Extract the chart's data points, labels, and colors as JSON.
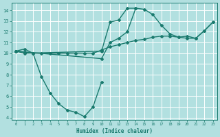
{
  "background_color": "#b2e0e0",
  "grid_color": "#d0eeee",
  "grid_color2": "#ffffff",
  "line_color": "#1a7a6e",
  "xlabel": "Humidex (Indice chaleur)",
  "xlim": [
    -0.5,
    23.5
  ],
  "ylim": [
    3.8,
    14.7
  ],
  "yticks": [
    4,
    5,
    6,
    7,
    8,
    9,
    10,
    11,
    12,
    13,
    14
  ],
  "xticks": [
    0,
    1,
    2,
    3,
    4,
    5,
    6,
    7,
    8,
    9,
    10,
    11,
    12,
    13,
    14,
    15,
    16,
    17,
    18,
    19,
    20,
    21,
    22,
    23
  ],
  "lines": [
    {
      "x": [
        0,
        1,
        2,
        3,
        4,
        5,
        6,
        7,
        8,
        9,
        10
      ],
      "y": [
        10.2,
        10.4,
        10.0,
        7.8,
        6.3,
        5.3,
        4.7,
        4.5,
        4.1,
        5.0,
        7.3
      ]
    },
    {
      "x": [
        0,
        1,
        10,
        11,
        12,
        13,
        14
      ],
      "y": [
        10.2,
        10.0,
        10.2,
        12.9,
        13.1,
        14.2,
        14.2
      ]
    },
    {
      "x": [
        0,
        1,
        2,
        3,
        4,
        5,
        6,
        7,
        8,
        9,
        10,
        11,
        12,
        13,
        14,
        15,
        16,
        17,
        18,
        19,
        20,
        21,
        22,
        23
      ],
      "y": [
        10.2,
        10.1,
        10.0,
        10.0,
        10.0,
        10.0,
        10.0,
        10.0,
        10.0,
        10.0,
        10.3,
        10.6,
        10.8,
        11.0,
        11.2,
        11.3,
        11.5,
        11.6,
        11.6,
        11.5,
        11.4,
        11.4,
        12.1,
        12.9
      ]
    },
    {
      "x": [
        0,
        10,
        11,
        12,
        13,
        14,
        15,
        16,
        17,
        18,
        19,
        20,
        21,
        22,
        23
      ],
      "y": [
        10.2,
        9.5,
        11.0,
        11.4,
        12.0,
        14.2,
        14.1,
        13.6,
        12.6,
        11.8,
        11.5,
        11.6,
        11.4,
        12.1,
        12.9
      ]
    }
  ]
}
